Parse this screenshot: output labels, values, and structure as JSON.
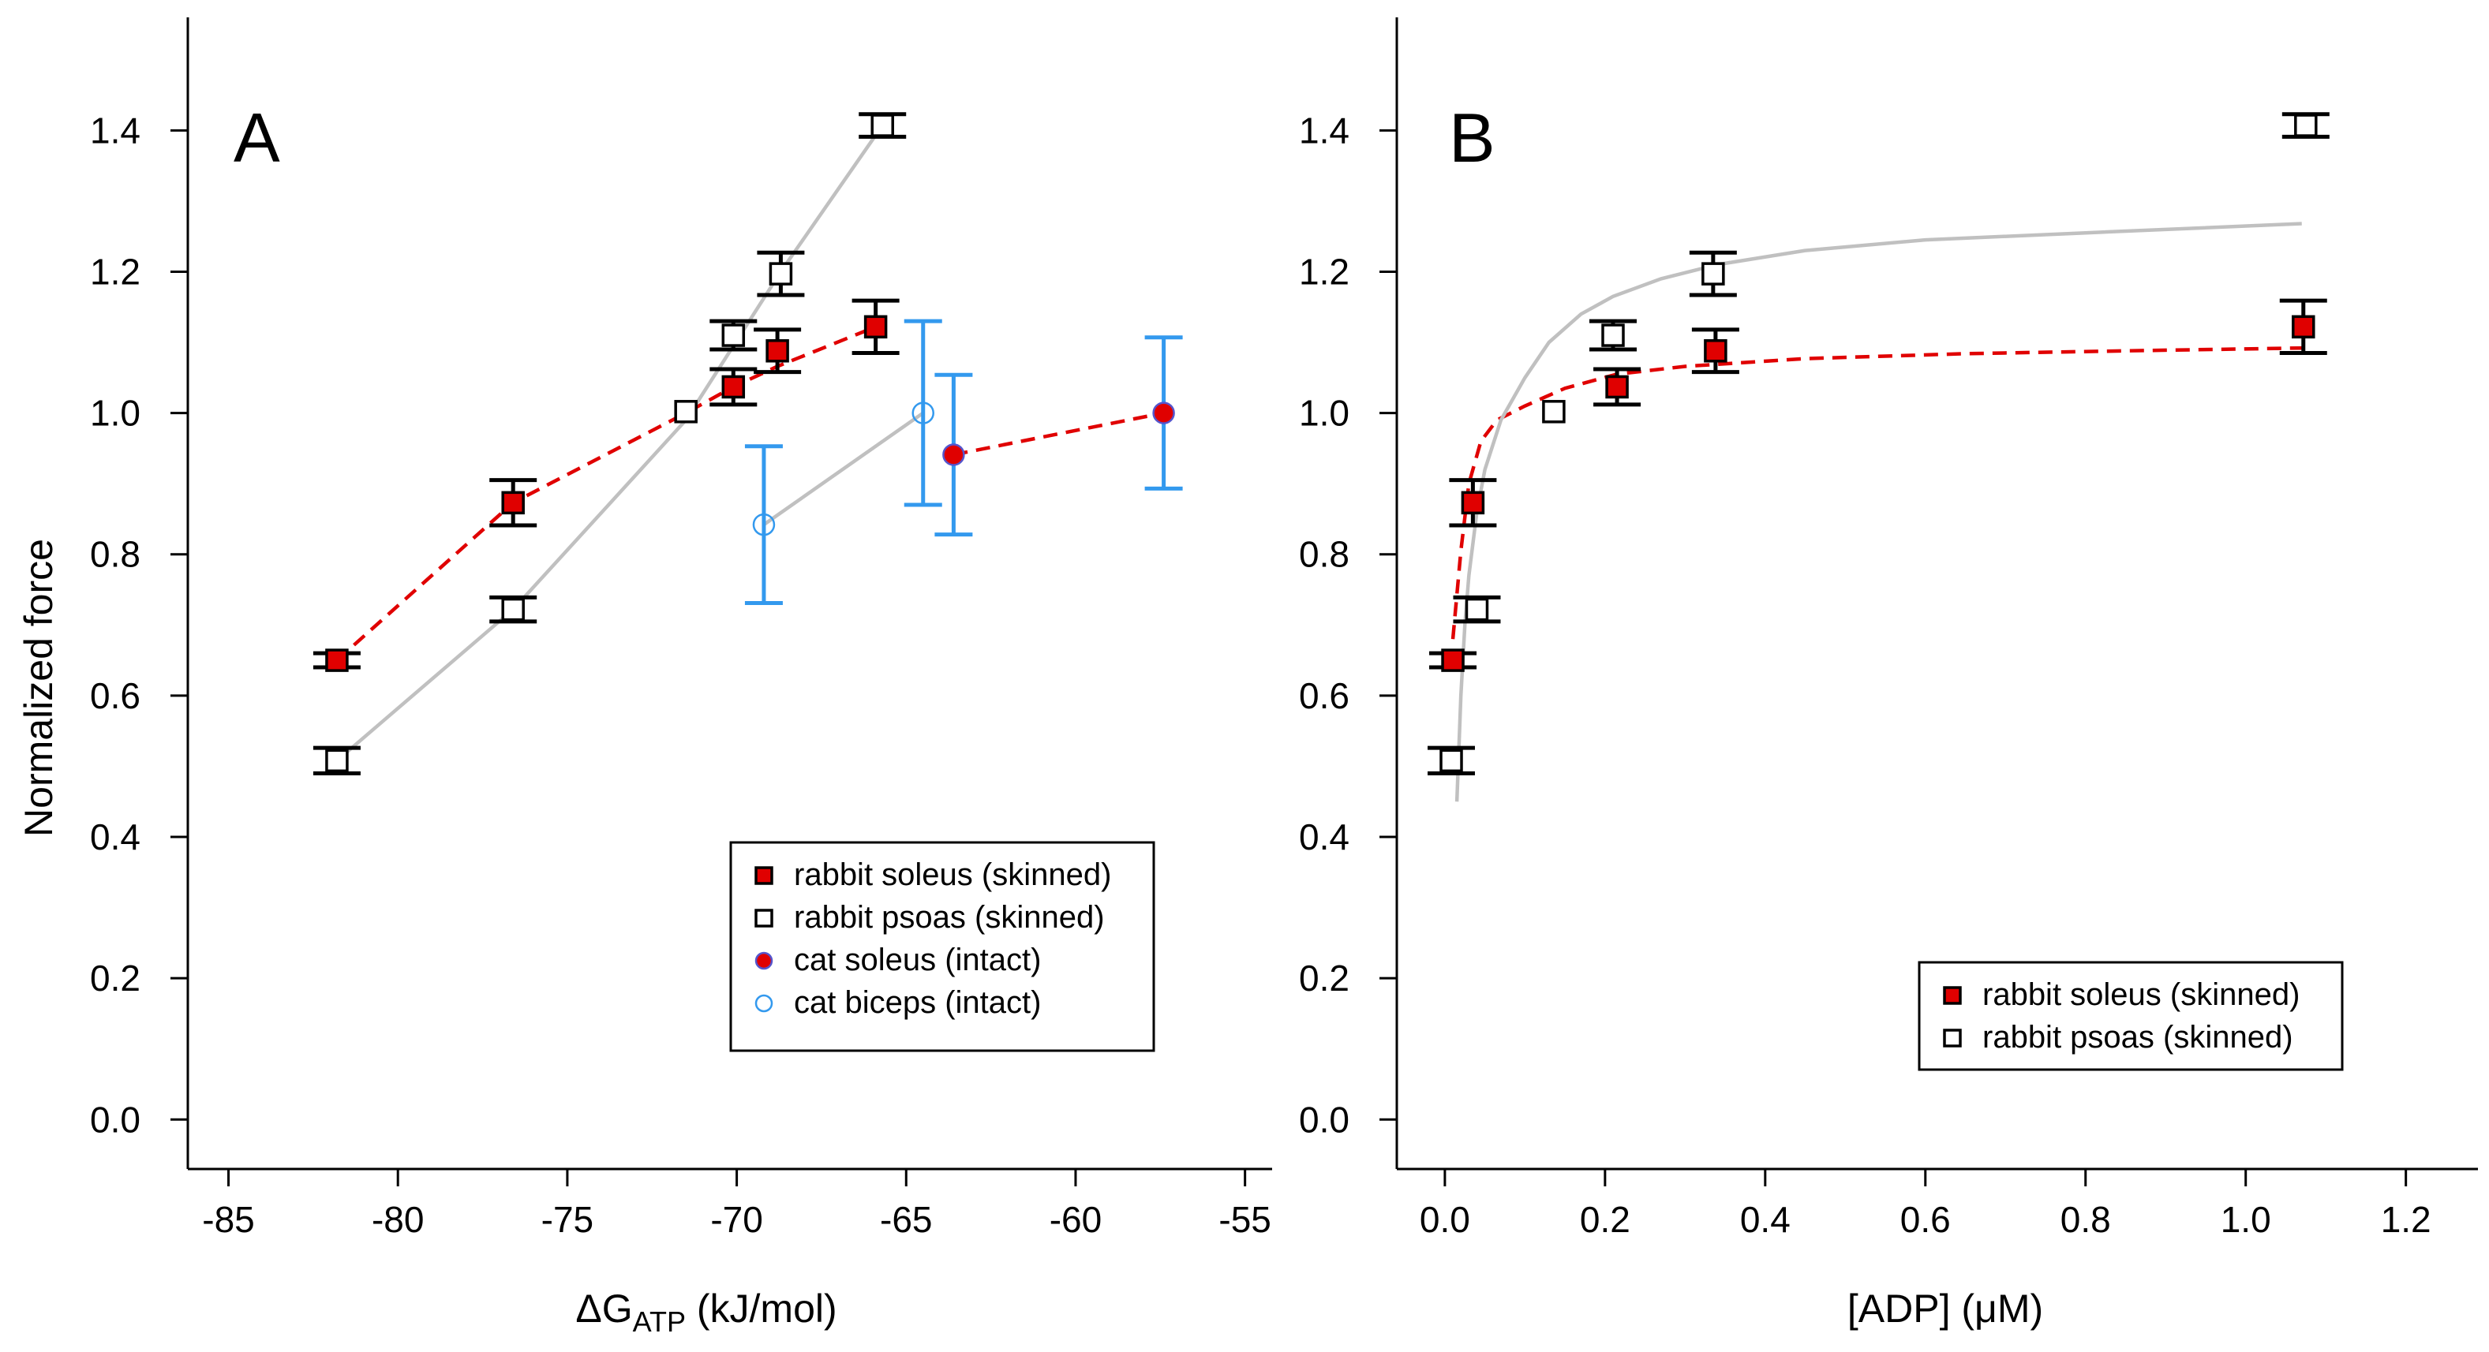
{
  "colors": {
    "soleus_fill": "#e00000",
    "soleus_line": "#e00000",
    "psoas_line": "#c0c0c0",
    "cat_errorbar": "#3399ee",
    "cat_biceps": "#3399ee",
    "black": "#000000"
  },
  "chart_data": [
    {
      "type": "scatter",
      "panel_label": "A",
      "xlabel_main": "ΔG",
      "xlabel_sub": "ATP",
      "xlabel_rest": " (kJ/mol)",
      "ylabel": "Normalized force",
      "xlim": [
        -86.2,
        -54.2
      ],
      "ylim": [
        -0.07,
        1.56
      ],
      "xticks": [
        -85,
        -80,
        -75,
        -70,
        -65,
        -60,
        -55
      ],
      "xtick_labels": [
        "-85",
        "-80",
        "-75",
        "-70",
        "-65",
        "-60",
        "-55"
      ],
      "yticks": [
        0.0,
        0.2,
        0.4,
        0.6,
        0.8,
        1.0,
        1.2,
        1.4
      ],
      "ytick_labels": [
        "0.0",
        "0.2",
        "0.4",
        "0.6",
        "0.8",
        "1.0",
        "1.2",
        "1.4"
      ],
      "legend_position": "bottom-right",
      "legend": [
        {
          "label": "rabbit soleus (skinned)",
          "marker": "filled-square"
        },
        {
          "label": "rabbit psoas (skinned)",
          "marker": "open-square"
        },
        {
          "label": "cat soleus (intact)",
          "marker": "filled-circle"
        },
        {
          "label": "cat biceps (intact)",
          "marker": "open-circle"
        }
      ],
      "series": [
        {
          "name": "rabbit soleus (skinned)",
          "marker": "filled-square",
          "x": [
            -81.8,
            -76.6,
            -70.1,
            -68.8,
            -65.9
          ],
          "y": [
            0.65,
            0.873,
            1.037,
            1.088,
            1.122
          ],
          "err": [
            0.01,
            0.032,
            0.025,
            0.03,
            0.037
          ],
          "fit_x": [
            -81.8,
            -76.6,
            -71.5,
            -70.1,
            -68.8,
            -65.9
          ],
          "fit_y": [
            0.65,
            0.873,
            1.0,
            1.037,
            1.066,
            1.122
          ]
        },
        {
          "name": "rabbit psoas (skinned)",
          "marker": "open-square",
          "x": [
            -81.8,
            -76.6,
            -71.5,
            -70.1,
            -68.7,
            -65.7
          ],
          "y": [
            0.508,
            0.722,
            1.002,
            1.11,
            1.197,
            1.407
          ],
          "err": [
            0.018,
            0.017,
            0.0,
            0.02,
            0.03,
            0.016
          ],
          "fit_x": [
            -81.8,
            -76.6,
            -71.5,
            -68.7,
            -65.7
          ],
          "fit_y": [
            0.508,
            0.722,
            0.99,
            1.2,
            1.407
          ]
        },
        {
          "name": "cat soleus (intact)",
          "marker": "filled-circle",
          "x": [
            -63.6,
            -57.4
          ],
          "y": [
            0.941,
            1.0
          ],
          "err": [
            0.113,
            0.107
          ],
          "fit_x": [
            -63.6,
            -57.4
          ],
          "fit_y": [
            0.941,
            1.0
          ]
        },
        {
          "name": "cat biceps (intact)",
          "marker": "open-circle",
          "x": [
            -69.2,
            -64.5
          ],
          "y": [
            0.842,
            1.0
          ],
          "err": [
            0.111,
            0.13
          ],
          "fit_x": [
            -69.2,
            -64.5
          ],
          "fit_y": [
            0.842,
            1.0
          ]
        }
      ]
    },
    {
      "type": "scatter",
      "panel_label": "B",
      "xlabel": "[ADP] (μM)",
      "ylabel": "",
      "xlim": [
        -0.06,
        1.29
      ],
      "ylim": [
        -0.07,
        1.56
      ],
      "xticks": [
        0.0,
        0.2,
        0.4,
        0.6,
        0.8,
        1.0,
        1.2
      ],
      "xtick_labels": [
        "0.0",
        "0.2",
        "0.4",
        "0.6",
        "0.8",
        "1.0",
        "1.2"
      ],
      "yticks": [
        0.0,
        0.2,
        0.4,
        0.6,
        0.8,
        1.0,
        1.2,
        1.4
      ],
      "ytick_labels": [
        "0.0",
        "0.2",
        "0.4",
        "0.6",
        "0.8",
        "1.0",
        "1.2",
        "1.4"
      ],
      "legend_position": "bottom-right",
      "legend": [
        {
          "label": "rabbit soleus (skinned)",
          "marker": "filled-square"
        },
        {
          "label": "rabbit psoas (skinned)",
          "marker": "open-square"
        }
      ],
      "series": [
        {
          "name": "rabbit soleus (skinned)",
          "marker": "filled-square",
          "x": [
            0.01,
            0.035,
            0.215,
            0.338,
            1.072
          ],
          "y": [
            0.65,
            0.873,
            1.037,
            1.088,
            1.122
          ],
          "err": [
            0.01,
            0.032,
            0.025,
            0.03,
            0.037
          ],
          "fit_x": [
            0.01,
            0.02,
            0.03,
            0.045,
            0.065,
            0.1,
            0.15,
            0.215,
            0.3,
            0.45,
            0.65,
            0.85,
            1.07
          ],
          "fit_y": [
            0.68,
            0.805,
            0.9,
            0.96,
            0.99,
            1.01,
            1.035,
            1.055,
            1.066,
            1.077,
            1.084,
            1.088,
            1.092
          ]
        },
        {
          "name": "rabbit psoas (skinned)",
          "marker": "open-square",
          "x": [
            0.008,
            0.04,
            0.136,
            0.21,
            0.335,
            1.075
          ],
          "y": [
            0.508,
            0.722,
            1.002,
            1.11,
            1.197,
            1.407
          ],
          "err": [
            0.018,
            0.017,
            0.0,
            0.02,
            0.03,
            0.016
          ],
          "fit_x": [
            0.015,
            0.02,
            0.025,
            0.03,
            0.04,
            0.05,
            0.07,
            0.1,
            0.13,
            0.17,
            0.21,
            0.27,
            0.34,
            0.45,
            0.6,
            0.8,
            1.07
          ],
          "fit_y": [
            0.45,
            0.6,
            0.7,
            0.77,
            0.86,
            0.92,
            0.99,
            1.05,
            1.1,
            1.14,
            1.165,
            1.19,
            1.21,
            1.23,
            1.245,
            1.255,
            1.268
          ]
        }
      ]
    }
  ]
}
